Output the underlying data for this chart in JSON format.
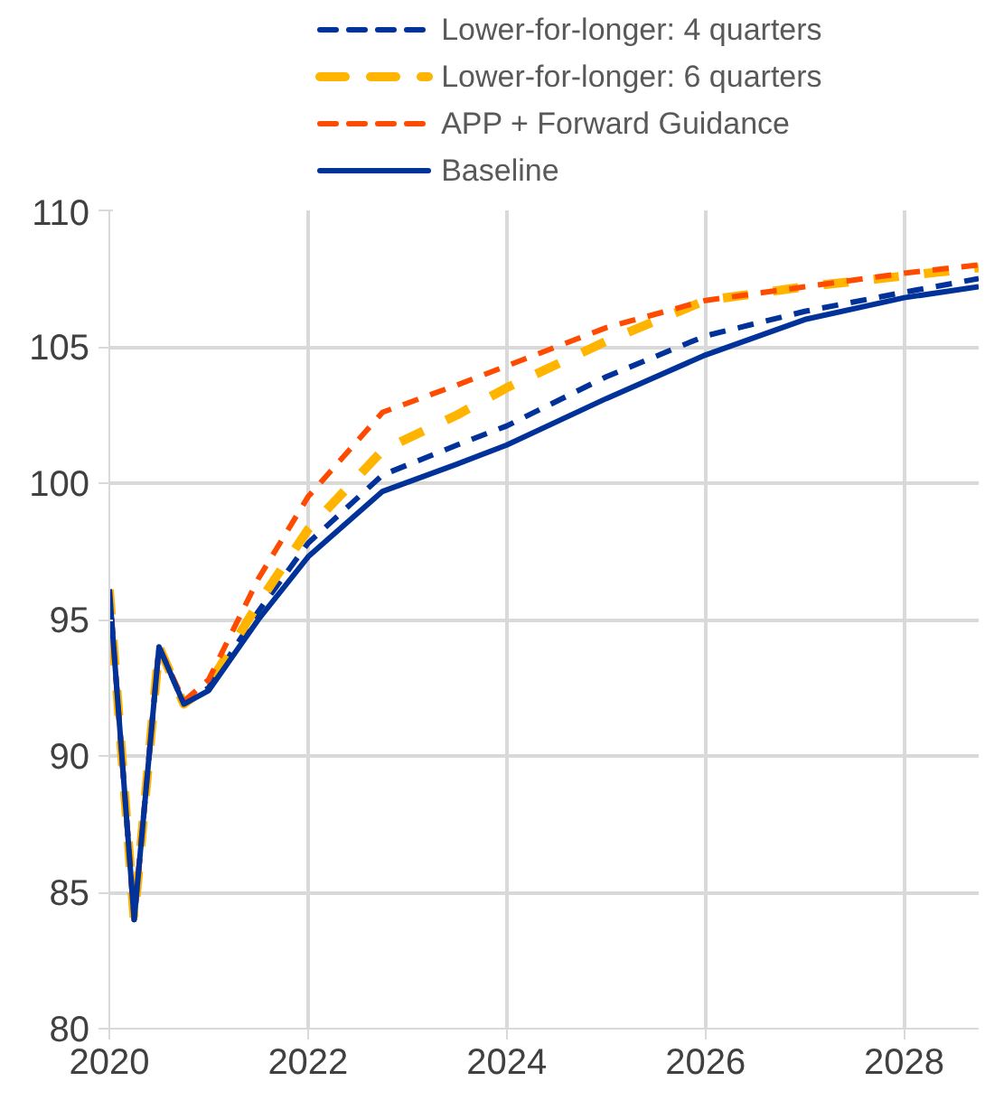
{
  "chart_data": {
    "type": "line",
    "xlim": [
      2020,
      2028.75
    ],
    "ylim": [
      80,
      110
    ],
    "xticks": [
      2020,
      2022,
      2024,
      2026,
      2028
    ],
    "yticks": [
      80,
      85,
      90,
      95,
      100,
      105,
      110
    ],
    "grid": true,
    "legend": "top",
    "marker": "none",
    "series": [
      {
        "name": "Lower-for-longer: 4 quarters",
        "color": "#003299",
        "line_style": "dashed",
        "x": [
          2020,
          2020.25,
          2020.5,
          2020.75,
          2021,
          2021.5,
          2022,
          2022.75,
          2023.5,
          2024,
          2025,
          2026,
          2027,
          2028,
          2028.75
        ],
        "values": [
          96.1,
          84,
          94,
          91.9,
          92.5,
          95.3,
          97.8,
          100.3,
          101.4,
          102.1,
          103.9,
          105.4,
          106.3,
          107,
          107.5
        ]
      },
      {
        "name": "Lower-for-longer: 6 quarters",
        "color": "#ffb400",
        "line_style": "dashed",
        "x": [
          2020,
          2020.25,
          2020.5,
          2020.75,
          2021,
          2021.5,
          2022,
          2022.75,
          2023.5,
          2024,
          2025,
          2026,
          2027,
          2028,
          2028.75
        ],
        "values": [
          96.1,
          84,
          94,
          91.9,
          92.6,
          95.6,
          98.3,
          101.2,
          102.5,
          103.5,
          105.2,
          106.7,
          107.2,
          107.6,
          107.9
        ]
      },
      {
        "name": "APP + Forward Guidance",
        "color": "#ff4b00",
        "line_style": "dashed",
        "x": [
          2020,
          2020.25,
          2020.5,
          2020.75,
          2021,
          2021.5,
          2022,
          2022.75,
          2023.5,
          2024,
          2025,
          2026,
          2027,
          2028,
          2028.75
        ],
        "values": [
          96.1,
          84,
          94,
          92,
          92.8,
          96.5,
          99.5,
          102.6,
          103.6,
          104.3,
          105.7,
          106.7,
          107.2,
          107.7,
          108
        ]
      },
      {
        "name": "Baseline",
        "color": "#003299",
        "line_style": "solid",
        "x": [
          2020,
          2020.25,
          2020.5,
          2020.75,
          2021,
          2021.5,
          2022,
          2022.75,
          2023.5,
          2024,
          2025,
          2026,
          2027,
          2028,
          2028.75
        ],
        "values": [
          96.1,
          84,
          94,
          91.9,
          92.4,
          95,
          97.3,
          99.7,
          100.7,
          101.4,
          103.1,
          104.7,
          106,
          106.8,
          107.2
        ]
      }
    ]
  }
}
